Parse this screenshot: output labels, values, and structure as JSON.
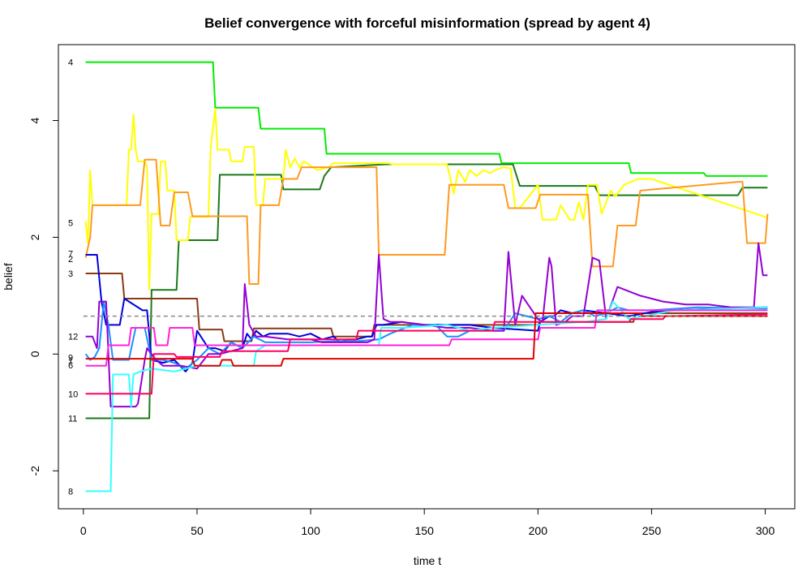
{
  "chart_data": {
    "type": "line",
    "title": "Belief convergence with forceful misinformation (spread by agent 4)",
    "xlabel": "time t",
    "ylabel": "belief",
    "xlim": [
      -11,
      313
    ],
    "ylim": [
      -2.65,
      5.3
    ],
    "xticks": [
      0,
      50,
      100,
      150,
      200,
      250,
      300
    ],
    "yticks": [
      -2,
      0,
      2,
      4
    ],
    "grid": false,
    "legend": "none",
    "reference_line": {
      "y": 0.65,
      "color": "#888888",
      "style": "dashed"
    },
    "agent_labels": [
      {
        "text": "4",
        "y": 5.0
      },
      {
        "text": "5",
        "y": 2.25
      },
      {
        "text": "7",
        "y": 1.72
      },
      {
        "text": "2",
        "y": 1.63
      },
      {
        "text": "3",
        "y": 1.38
      },
      {
        "text": "12",
        "y": 0.3
      },
      {
        "text": "9",
        "y": -0.06
      },
      {
        "text": "1",
        "y": -0.11
      },
      {
        "text": "6",
        "y": -0.19
      },
      {
        "text": "10",
        "y": -0.68
      },
      {
        "text": "11",
        "y": -1.1
      },
      {
        "text": "8",
        "y": -2.35
      }
    ],
    "series": [
      {
        "color": "#00ee00",
        "x": [
          1,
          57,
          58,
          77,
          78,
          106,
          107,
          183,
          184,
          240,
          241,
          273,
          274,
          301
        ],
        "y": [
          5.0,
          5.0,
          4.22,
          4.22,
          3.86,
          3.86,
          3.43,
          3.43,
          3.27,
          3.27,
          3.1,
          3.1,
          3.05,
          3.05
        ]
      },
      {
        "color": "#1a7a1a",
        "x": [
          1,
          29,
          30,
          41,
          42,
          59,
          60,
          87,
          88,
          104,
          106,
          109,
          133,
          189,
          192,
          225,
          227,
          288,
          290,
          301
        ],
        "y": [
          -1.1,
          -1.1,
          1.1,
          1.1,
          1.95,
          1.95,
          3.07,
          3.07,
          2.82,
          2.82,
          3.05,
          3.2,
          3.25,
          3.25,
          2.88,
          2.88,
          2.72,
          2.72,
          2.85,
          2.85
        ]
      },
      {
        "color": "#ffff00",
        "x": [
          1,
          2,
          3,
          4,
          5,
          19,
          20,
          21,
          22,
          23,
          24,
          27,
          28,
          29,
          30,
          33,
          34,
          36,
          37,
          40,
          41,
          46,
          47,
          55,
          56,
          58,
          59,
          64,
          65,
          70,
          71,
          75,
          76,
          79,
          80,
          88,
          89,
          91,
          93,
          95,
          97,
          101,
          103,
          108,
          110,
          134,
          136,
          160,
          163,
          165,
          168,
          170,
          173,
          176,
          179,
          181,
          185,
          188,
          190,
          192,
          200,
          202,
          208,
          210,
          214,
          216,
          218,
          220,
          222,
          226,
          228,
          232,
          234,
          238,
          241,
          244,
          250,
          300,
          301
        ],
        "y": [
          2.27,
          1.9,
          3.15,
          2.55,
          2.55,
          2.55,
          3.5,
          3.5,
          4.1,
          3.5,
          3.3,
          3.3,
          3.2,
          1.1,
          2.4,
          2.4,
          3.3,
          3.3,
          2.8,
          2.8,
          1.95,
          1.95,
          2.35,
          2.35,
          3.55,
          4.2,
          3.5,
          3.5,
          3.3,
          3.3,
          3.55,
          3.55,
          2.55,
          2.55,
          3.0,
          3.0,
          3.5,
          3.2,
          3.35,
          3.2,
          3.3,
          3.2,
          3.15,
          3.2,
          3.27,
          3.27,
          3.25,
          3.25,
          2.75,
          3.15,
          2.95,
          3.15,
          3.05,
          3.15,
          3.1,
          3.15,
          3.2,
          3.18,
          2.5,
          2.5,
          2.9,
          2.3,
          2.3,
          2.55,
          2.3,
          2.3,
          2.6,
          2.3,
          2.9,
          2.9,
          2.4,
          2.8,
          2.7,
          2.9,
          2.95,
          3.0,
          3.0,
          2.35,
          2.35
        ]
      },
      {
        "color": "#ff9922",
        "x": [
          1,
          3,
          4,
          25,
          27,
          32,
          34,
          38,
          40,
          46,
          48,
          72,
          73,
          77,
          78,
          86,
          88,
          94,
          96,
          129,
          130,
          159,
          161,
          185,
          187,
          199,
          201,
          222,
          224,
          233,
          235,
          243,
          245,
          288,
          290,
          292,
          300,
          301
        ],
        "y": [
          1.65,
          2.0,
          2.55,
          2.55,
          3.33,
          3.33,
          2.2,
          2.2,
          2.77,
          2.77,
          2.36,
          2.36,
          1.2,
          1.2,
          2.55,
          2.55,
          3.0,
          3.0,
          3.2,
          3.2,
          1.7,
          1.7,
          2.9,
          2.9,
          2.5,
          2.5,
          2.73,
          2.73,
          1.5,
          1.5,
          2.2,
          2.2,
          2.8,
          2.95,
          2.95,
          1.9,
          1.9,
          2.4
        ]
      },
      {
        "color": "#8b3a14",
        "x": [
          1,
          17,
          18,
          50,
          51,
          61,
          62,
          74,
          75,
          109,
          110,
          127,
          128,
          200,
          201,
          242,
          243,
          301
        ],
        "y": [
          1.38,
          1.38,
          0.95,
          0.95,
          0.42,
          0.42,
          0.22,
          0.22,
          0.44,
          0.44,
          0.3,
          0.3,
          0.5,
          0.5,
          0.55,
          0.55,
          0.7,
          0.7
        ]
      },
      {
        "color": "#0000dd",
        "x": [
          1,
          6,
          8,
          10,
          12,
          16,
          18,
          26,
          28,
          30,
          35,
          40,
          45,
          48,
          50,
          55,
          58,
          62,
          65,
          70,
          72,
          74,
          76,
          79,
          82,
          90,
          95,
          100,
          105,
          110,
          113,
          116,
          120,
          125,
          127,
          129,
          130,
          132,
          140,
          150,
          160,
          170,
          180,
          200,
          201,
          203,
          205,
          207,
          210,
          215,
          220,
          230,
          240,
          250,
          260,
          280,
          300,
          301
        ],
        "y": [
          1.7,
          1.7,
          0.9,
          0.5,
          0.5,
          0.5,
          0.95,
          0.75,
          0.75,
          -0.1,
          -0.15,
          -0.1,
          -0.3,
          -0.15,
          0.4,
          0.1,
          0.1,
          0.05,
          0.2,
          0.1,
          0.35,
          0.25,
          0.4,
          0.3,
          0.35,
          0.35,
          0.3,
          0.35,
          0.25,
          0.3,
          0.2,
          0.25,
          0.25,
          0.3,
          0.3,
          0.5,
          0.5,
          0.5,
          0.55,
          0.5,
          0.5,
          0.5,
          0.45,
          0.4,
          0.55,
          0.6,
          0.65,
          0.65,
          0.75,
          0.7,
          0.75,
          0.7,
          0.65,
          0.72,
          0.75,
          0.78,
          0.8,
          0.8
        ]
      },
      {
        "color": "#1e8fff",
        "x": [
          1,
          3,
          5,
          7,
          9,
          11,
          13,
          20,
          23,
          27,
          30,
          35,
          40,
          45,
          50,
          55,
          60,
          65,
          70,
          75,
          80,
          90,
          100,
          110,
          120,
          130,
          135,
          145,
          155,
          160,
          165,
          170,
          175,
          185,
          190,
          195,
          200,
          205,
          210,
          215,
          220,
          225,
          230,
          235,
          240,
          250,
          270,
          301
        ],
        "y": [
          0.0,
          -0.1,
          -0.05,
          0.1,
          0.9,
          0.5,
          -0.1,
          -0.1,
          0.45,
          0.45,
          -0.1,
          -0.1,
          -0.15,
          -0.25,
          -0.1,
          0.1,
          0.0,
          0.2,
          0.1,
          0.3,
          0.2,
          0.2,
          0.2,
          0.22,
          0.22,
          0.25,
          0.35,
          0.5,
          0.5,
          0.3,
          0.3,
          0.4,
          0.4,
          0.4,
          0.7,
          0.65,
          0.6,
          0.65,
          0.55,
          0.7,
          0.75,
          0.65,
          0.7,
          0.8,
          0.75,
          0.75,
          0.8,
          0.78
        ]
      },
      {
        "color": "#9400d3",
        "x": [
          1,
          4,
          6,
          7,
          10,
          12,
          13,
          23,
          24,
          27,
          28,
          32,
          35,
          43,
          50,
          55,
          60,
          65,
          70,
          71,
          73,
          76,
          80,
          90,
          100,
          105,
          115,
          125,
          128,
          130,
          132,
          135,
          140,
          150,
          160,
          170,
          180,
          185,
          187,
          190,
          193,
          200,
          202,
          205,
          206,
          208,
          212,
          215,
          220,
          224,
          227,
          230,
          235,
          245,
          255,
          265,
          275,
          285,
          295,
          297,
          299,
          301
        ],
        "y": [
          0.3,
          0.3,
          0.1,
          0.9,
          0.9,
          -0.9,
          -0.9,
          -0.9,
          -0.85,
          -0.1,
          0.1,
          -0.1,
          -0.2,
          -0.2,
          -0.25,
          0.0,
          0.0,
          0.05,
          0.1,
          1.2,
          0.5,
          0.3,
          0.3,
          0.25,
          0.25,
          0.2,
          0.2,
          0.2,
          0.25,
          1.7,
          0.6,
          0.55,
          0.55,
          0.5,
          0.45,
          0.45,
          0.4,
          0.4,
          1.75,
          0.5,
          1.0,
          0.6,
          0.55,
          1.65,
          1.5,
          0.5,
          0.55,
          0.65,
          0.65,
          1.65,
          1.6,
          0.6,
          1.15,
          1.0,
          0.9,
          0.85,
          0.85,
          0.8,
          0.8,
          1.9,
          1.35,
          1.35
        ]
      },
      {
        "color": "#33ffff",
        "x": [
          1,
          12,
          13,
          20,
          21,
          22,
          25,
          30,
          40,
          50,
          60,
          75,
          76,
          80,
          85,
          100,
          130,
          131,
          140,
          160,
          170,
          180,
          200,
          220,
          230,
          233,
          240,
          260,
          301
        ],
        "y": [
          -2.35,
          -2.35,
          -0.35,
          -0.35,
          -0.9,
          -0.35,
          -0.3,
          -0.25,
          -0.3,
          -0.2,
          -0.2,
          -0.2,
          0.05,
          0.15,
          0.15,
          0.15,
          0.15,
          0.45,
          0.45,
          0.5,
          0.4,
          0.45,
          0.5,
          0.55,
          0.6,
          0.9,
          0.6,
          0.75,
          0.8
        ]
      },
      {
        "color": "#ff22dd",
        "x": [
          1,
          10,
          11,
          20,
          21,
          31,
          32,
          37,
          38,
          48,
          49,
          70,
          71,
          161,
          162,
          175,
          176,
          200,
          201,
          225,
          226,
          270,
          301
        ],
        "y": [
          -0.2,
          -0.2,
          0.15,
          0.15,
          0.45,
          0.45,
          0.15,
          0.15,
          0.45,
          0.45,
          0.15,
          0.15,
          0.15,
          0.15,
          0.25,
          0.25,
          0.25,
          0.25,
          0.45,
          0.45,
          0.75,
          0.75,
          0.75
        ]
      },
      {
        "color": "#ff0066",
        "x": [
          1,
          30,
          31,
          40,
          41,
          60,
          61,
          90,
          91,
          120,
          121,
          180,
          181,
          240,
          241,
          255,
          256,
          301
        ],
        "y": [
          -0.68,
          -0.68,
          0.0,
          0.0,
          -0.05,
          -0.05,
          0.05,
          0.05,
          0.25,
          0.25,
          0.4,
          0.4,
          0.55,
          0.55,
          0.6,
          0.6,
          0.65,
          0.68
        ]
      },
      {
        "color": "#e00000",
        "x": [
          1,
          48,
          49,
          60,
          61,
          65,
          66,
          87,
          88,
          198,
          199,
          245,
          246,
          301
        ],
        "y": [
          -0.08,
          -0.08,
          -0.2,
          -0.2,
          -0.1,
          -0.1,
          -0.2,
          -0.2,
          -0.08,
          -0.08,
          0.7,
          0.7,
          0.65,
          0.65
        ]
      }
    ]
  }
}
